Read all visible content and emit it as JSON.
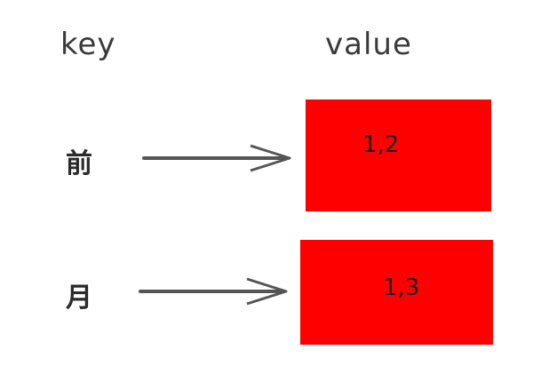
{
  "headers": {
    "key": "key",
    "value": "value"
  },
  "rows": [
    {
      "key": "前",
      "value": "1,2"
    },
    {
      "key": "月",
      "value": "1,3"
    }
  ],
  "colors": {
    "box_fill": "#ff0000",
    "arrow": "#555555",
    "text": "#2a2a2a"
  }
}
